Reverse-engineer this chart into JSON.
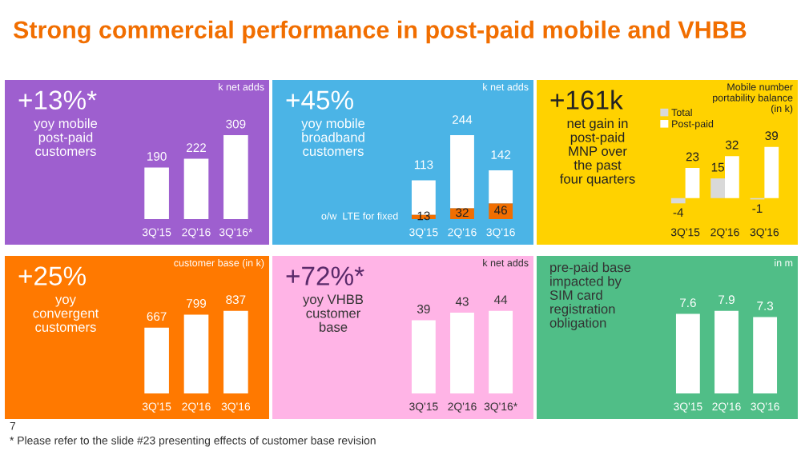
{
  "chart_data": [
    {
      "type": "other",
      "title": "Strong commercial performance in post-paid mobile and VHBB",
      "annotations": [
        "7",
        "* Please refer to the slide #23 presenting effects of customer base revision"
      ]
    },
    {
      "type": "bar",
      "title": "+13%*",
      "subtitle": "yoy mobile\npost-paid\ncustomers",
      "ylabel": "k net adds",
      "categories": [
        "3Q'15",
        "2Q'16",
        "3Q'16*"
      ],
      "values": [
        190,
        222,
        309
      ],
      "color": "#ffffff",
      "data_labels": true,
      "tick_labels": "x"
    },
    {
      "type": "bar",
      "title": "+45%",
      "subtitle": "yoy mobile\nbroadband\ncustomers",
      "ylabel": "k net adds",
      "categories": [
        "3Q'15",
        "2Q'16",
        "3Q'16"
      ],
      "stacked": true,
      "tick_labels": "x",
      "series": [
        {
          "name": "o/w  LTE for fixed",
          "color": "#f16e00",
          "values": [
            13,
            32,
            46
          ],
          "value_labels": [
            "13",
            "32",
            "46"
          ]
        },
        {
          "color": "#ffffff",
          "values": [
            100,
            212,
            96
          ]
        }
      ],
      "totals": [
        "113",
        "244",
        "142"
      ]
    },
    {
      "type": "bar",
      "title": "+161k",
      "subtitle": "net gain in\npost-paid\nMNP over\nthe past\nfour quarters",
      "ylabel": "Mobile number\nportability balance\n(in k)",
      "categories": [
        "3Q'15",
        "2Q'16",
        "3Q'16"
      ],
      "legend": "top left",
      "data_labels": true,
      "tick_labels": "x",
      "series": [
        {
          "name": "Total",
          "color": "#d9d9d9",
          "values": [
            -4,
            15,
            -1
          ]
        },
        {
          "name": "Post-paid",
          "color": "#ffffff",
          "values": [
            23,
            32,
            39
          ]
        }
      ]
    },
    {
      "type": "bar",
      "title": "+25%",
      "subtitle": "yoy\nconvergent\ncustomers",
      "ylabel": "customer base (in k)",
      "categories": [
        "3Q'15",
        "2Q'16",
        "3Q'16"
      ],
      "values": [
        667,
        799,
        837
      ],
      "color": "#ffffff",
      "data_labels": true,
      "tick_labels": "x"
    },
    {
      "type": "bar",
      "title": "+72%*",
      "subtitle": "yoy VHBB\ncustomer\nbase",
      "ylabel": "k net adds",
      "categories": [
        "3Q'15",
        "2Q'16",
        "3Q'16*"
      ],
      "values": [
        39,
        43,
        44
      ],
      "color": "#ffffff",
      "data_labels": true,
      "tick_labels": "x"
    },
    {
      "type": "bar",
      "subtitle": "pre-paid base\nimpacted by\nSIM card\nregistration\nobligation",
      "ylabel": "in m",
      "categories": [
        "3Q'15",
        "2Q'16",
        "3Q'16"
      ],
      "values": [
        7.6,
        7.9,
        7.3
      ],
      "color": "#ffffff",
      "data_labels": true,
      "tick_labels": "x"
    }
  ]
}
